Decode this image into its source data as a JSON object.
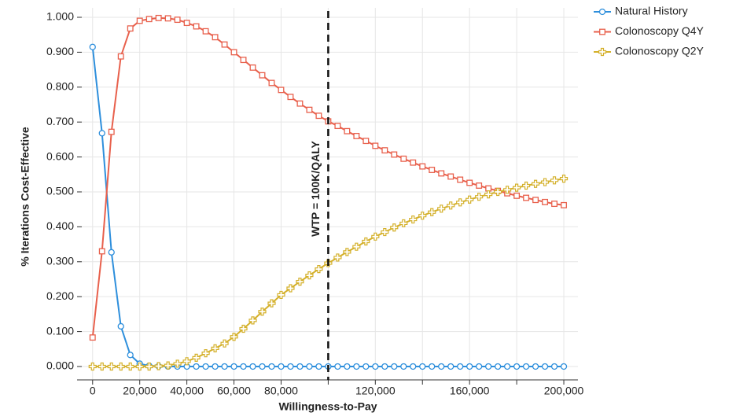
{
  "chart_data": {
    "type": "line",
    "y_label": "% Iterations Cost-Effective",
    "x_label": "Willingness-to-Pay",
    "x": [
      0,
      4000,
      8000,
      12000,
      16000,
      20000,
      24000,
      28000,
      32000,
      36000,
      40000,
      44000,
      48000,
      52000,
      56000,
      60000,
      64000,
      68000,
      72000,
      76000,
      80000,
      84000,
      88000,
      92000,
      96000,
      100000,
      104000,
      108000,
      112000,
      116000,
      120000,
      124000,
      128000,
      132000,
      136000,
      140000,
      144000,
      148000,
      152000,
      156000,
      160000,
      164000,
      168000,
      172000,
      176000,
      180000,
      184000,
      188000,
      192000,
      196000,
      200000
    ],
    "series": [
      {
        "name": "Natural History",
        "color": "#2e8fdc",
        "marker": "circle",
        "values": [
          0.915,
          0.668,
          0.327,
          0.115,
          0.033,
          0.008,
          0.002,
          0.001,
          0,
          0,
          0,
          0,
          0,
          0,
          0,
          0,
          0,
          0,
          0,
          0,
          0,
          0,
          0,
          0,
          0,
          0,
          0,
          0,
          0,
          0,
          0,
          0,
          0,
          0,
          0,
          0,
          0,
          0,
          0,
          0,
          0,
          0,
          0,
          0,
          0,
          0,
          0,
          0,
          0,
          0,
          0
        ]
      },
      {
        "name": "Colonoscopy Q4Y",
        "color": "#e8604c",
        "marker": "square",
        "values": [
          0.083,
          0.33,
          0.672,
          0.888,
          0.968,
          0.99,
          0.995,
          0.998,
          0.997,
          0.993,
          0.984,
          0.974,
          0.96,
          0.943,
          0.922,
          0.9,
          0.878,
          0.856,
          0.834,
          0.812,
          0.792,
          0.772,
          0.753,
          0.735,
          0.718,
          0.702,
          0.689,
          0.674,
          0.66,
          0.646,
          0.632,
          0.619,
          0.607,
          0.595,
          0.584,
          0.573,
          0.563,
          0.553,
          0.544,
          0.535,
          0.526,
          0.518,
          0.51,
          0.503,
          0.496,
          0.489,
          0.483,
          0.477,
          0.471,
          0.466,
          0.462
        ]
      },
      {
        "name": "Colonoscopy Q2Y",
        "color": "#d4b02a",
        "marker": "plus",
        "values": [
          0,
          0,
          0,
          0,
          0,
          0,
          0,
          0.001,
          0.003,
          0.008,
          0.015,
          0.025,
          0.038,
          0.052,
          0.066,
          0.085,
          0.108,
          0.132,
          0.157,
          0.181,
          0.205,
          0.224,
          0.243,
          0.261,
          0.279,
          0.296,
          0.312,
          0.328,
          0.343,
          0.358,
          0.372,
          0.385,
          0.398,
          0.41,
          0.421,
          0.432,
          0.442,
          0.452,
          0.461,
          0.47,
          0.478,
          0.486,
          0.493,
          0.5,
          0.506,
          0.512,
          0.518,
          0.523,
          0.528,
          0.533,
          0.538
        ]
      }
    ],
    "xlim": [
      -6600,
      206000
    ],
    "ylim": [
      -0.03,
      1.027
    ],
    "xticks": [
      0,
      {
        "value": 20000,
        "label": "20,000"
      },
      {
        "value": 40000,
        "label": "40,000"
      },
      {
        "value": 60000,
        "label": "60,000"
      },
      {
        "value": 80000,
        "label": "80,000"
      },
      {
        "value": 120000,
        "label": "120,000"
      },
      {
        "value": 160000,
        "label": "160,000"
      },
      {
        "value": 200000,
        "label": "200,000"
      }
    ],
    "xminor_ticks": [
      100000,
      140000,
      180000
    ],
    "yticks": [
      {
        "value": 0,
        "label": "0.000"
      },
      {
        "value": 0.1,
        "label": "0.100"
      },
      {
        "value": 0.2,
        "label": "0.200"
      },
      {
        "value": 0.3,
        "label": "0.300"
      },
      {
        "value": 0.4,
        "label": "0.400"
      },
      {
        "value": 0.5,
        "label": "0.500"
      },
      {
        "value": 0.6,
        "label": "0.600"
      },
      {
        "value": 0.7,
        "label": "0.700"
      },
      {
        "value": 0.8,
        "label": "0.800"
      },
      {
        "value": 0.9,
        "label": "0.900"
      },
      {
        "value": 1,
        "label": "1.000"
      }
    ],
    "annotations": [
      {
        "x": 100000,
        "text": "WTP = 100K/QALY"
      }
    ],
    "grid": true,
    "legend": "top-right"
  }
}
